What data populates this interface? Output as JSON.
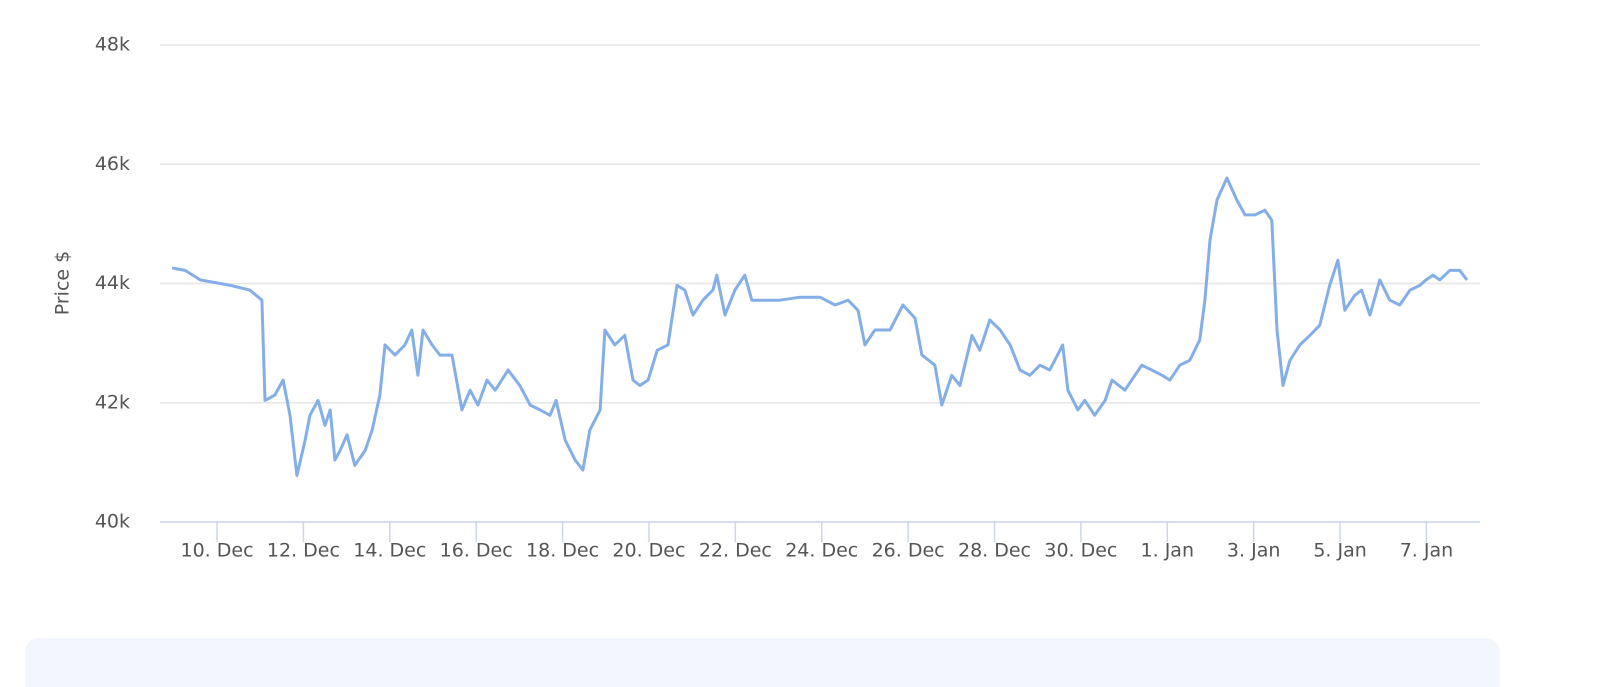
{
  "chart_data": {
    "type": "line",
    "y_label": "Price $",
    "color": "#84aee8",
    "grid": true,
    "ylim": [
      40000,
      48000
    ],
    "yticks": [
      {
        "value": 40000,
        "label": "40k"
      },
      {
        "value": 42000,
        "label": "42k"
      },
      {
        "value": 44000,
        "label": "44k"
      },
      {
        "value": 46000,
        "label": "46k"
      },
      {
        "value": 48000,
        "label": "48k"
      }
    ],
    "xlim": [
      8.68,
      39.24
    ],
    "xticks": [
      {
        "value": 10,
        "label": "10. Dec"
      },
      {
        "value": 12,
        "label": "12. Dec"
      },
      {
        "value": 14,
        "label": "14. Dec"
      },
      {
        "value": 16,
        "label": "16. Dec"
      },
      {
        "value": 18,
        "label": "18. Dec"
      },
      {
        "value": 20,
        "label": "20. Dec"
      },
      {
        "value": 22,
        "label": "22. Dec"
      },
      {
        "value": 24,
        "label": "24. Dec"
      },
      {
        "value": 26,
        "label": "26. Dec"
      },
      {
        "value": 28,
        "label": "28. Dec"
      },
      {
        "value": 30,
        "label": "30. Dec"
      },
      {
        "value": 32,
        "label": "1. Jan"
      },
      {
        "value": 34,
        "label": "3. Jan"
      },
      {
        "value": 36,
        "label": "5. Jan"
      },
      {
        "value": 38,
        "label": "7. Jan"
      }
    ],
    "x": [
      8.96,
      9.26,
      9.61,
      10.3,
      10.76,
      11.04,
      11.11,
      11.34,
      11.53,
      11.69,
      11.85,
      12.04,
      12.15,
      12.34,
      12.5,
      12.62,
      12.73,
      12.85,
      13.01,
      13.19,
      13.43,
      13.59,
      13.77,
      13.89,
      14.12,
      14.35,
      14.51,
      14.65,
      14.77,
      14.98,
      15.16,
      15.44,
      15.67,
      15.86,
      16.04,
      16.25,
      16.44,
      16.74,
      17.01,
      17.25,
      17.48,
      17.71,
      17.85,
      18.06,
      18.29,
      18.47,
      18.63,
      18.87,
      18.98,
      19.21,
      19.44,
      19.63,
      19.79,
      19.98,
      20.19,
      20.44,
      20.65,
      20.83,
      21.02,
      21.25,
      21.48,
      21.57,
      21.76,
      21.99,
      22.22,
      22.38,
      22.69,
      23.03,
      23.5,
      23.96,
      24.31,
      24.61,
      24.84,
      25.0,
      25.23,
      25.58,
      25.88,
      26.16,
      26.32,
      26.62,
      26.78,
      27.01,
      27.2,
      27.48,
      27.66,
      27.89,
      28.13,
      28.36,
      28.59,
      28.82,
      29.05,
      29.28,
      29.58,
      29.7,
      29.93,
      30.09,
      30.32,
      30.56,
      30.72,
      31.02,
      31.25,
      31.41,
      31.64,
      31.88,
      32.06,
      32.29,
      32.52,
      32.75,
      32.87,
      32.99,
      33.15,
      33.38,
      33.61,
      33.8,
      34.03,
      34.26,
      34.42,
      34.54,
      34.68,
      34.84,
      35.07,
      35.3,
      35.53,
      35.76,
      35.95,
      36.11,
      36.34,
      36.5,
      36.69,
      36.92,
      37.15,
      37.38,
      37.62,
      37.85,
      37.99,
      38.15,
      38.31,
      38.54,
      38.77,
      38.94
    ],
    "values": [
      44260,
      44220,
      44060,
      43970,
      43890,
      43720,
      42040,
      42130,
      42380,
      41790,
      40780,
      41370,
      41790,
      42040,
      41620,
      41880,
      41040,
      41200,
      41460,
      40950,
      41200,
      41540,
      42130,
      42970,
      42800,
      42970,
      43220,
      42460,
      43220,
      42970,
      42800,
      42800,
      41880,
      42210,
      41960,
      42380,
      42210,
      42550,
      42290,
      41960,
      41880,
      41790,
      42040,
      41370,
      41040,
      40870,
      41540,
      41880,
      43220,
      42970,
      43130,
      42380,
      42290,
      42380,
      42880,
      42970,
      43970,
      43890,
      43470,
      43720,
      43890,
      44140,
      43470,
      43890,
      44140,
      43720,
      43720,
      43720,
      43770,
      43770,
      43640,
      43720,
      43550,
      42970,
      43220,
      43220,
      43640,
      43420,
      42800,
      42630,
      41960,
      42460,
      42290,
      43130,
      42880,
      43390,
      43220,
      42970,
      42550,
      42460,
      42630,
      42550,
      42970,
      42210,
      41880,
      42040,
      41790,
      42040,
      42380,
      42210,
      42460,
      42630,
      42550,
      42460,
      42380,
      42630,
      42710,
      43050,
      43720,
      44730,
      45400,
      45770,
      45400,
      45150,
      45150,
      45230,
      45060,
      43220,
      42290,
      42710,
      42970,
      43130,
      43300,
      43970,
      44390,
      43550,
      43800,
      43890,
      43470,
      44060,
      43720,
      43640,
      43890,
      43970,
      44060,
      44140,
      44060,
      44220,
      44220,
      44060
    ]
  }
}
